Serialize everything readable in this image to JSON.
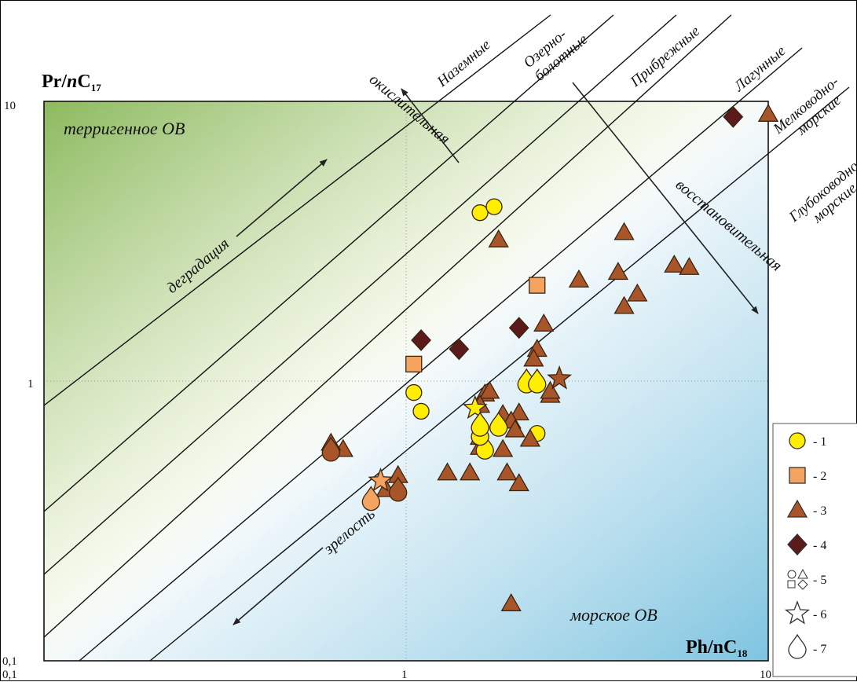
{
  "chart_data": {
    "type": "scatter",
    "xscale": "log",
    "yscale": "log",
    "xlim": [
      0.1,
      10
    ],
    "ylim": [
      0.1,
      10
    ],
    "xlabel": "Ph/nC18",
    "ylabel": "Pr/nC17",
    "xticks": [
      "0,1",
      "1",
      "10"
    ],
    "yticks": [
      "0,1",
      "1",
      "10"
    ],
    "zones": [
      "Наземные",
      "Озерно-\nболотные",
      "Прибрежные",
      "Лагунные",
      "Мелководно-\nморские",
      "Глубоководно-\nморские"
    ],
    "annotations": {
      "terrigenous": "терригенное ОВ",
      "marine": "морское ОВ",
      "degradation": "деградация",
      "maturity": "зрелость",
      "oxidizing": "окислительная",
      "reducing": "восстановительная"
    },
    "legend": [
      {
        "symbol": "circle",
        "label": "- 1"
      },
      {
        "symbol": "square",
        "label": "- 2"
      },
      {
        "symbol": "triangle",
        "label": "- 3"
      },
      {
        "symbol": "diamond",
        "label": "- 4"
      },
      {
        "symbol": "outline-group",
        "label": "- 5"
      },
      {
        "symbol": "star-outline",
        "label": "- 6"
      },
      {
        "symbol": "drop-outline",
        "label": "- 7"
      }
    ],
    "colors": {
      "circle": "#ffee00",
      "square": "#f4a460",
      "triangle": "#a9552a",
      "diamond": "#5c1a1a",
      "star_yellow": "#ffee00",
      "star_orange": "#f4a460",
      "star_brown": "#a9552a",
      "drop_yellow": "#ffee00",
      "drop_orange": "#f4a460",
      "drop_brown": "#a9552a",
      "terrigenous_zone": "#8fbf5e",
      "marine_zone": "#8fc8e2"
    },
    "series": [
      {
        "group": "1",
        "shape": "circle",
        "points": [
          [
            1.6,
            4.0
          ],
          [
            1.75,
            4.2
          ],
          [
            1.05,
            0.91
          ],
          [
            1.1,
            0.78
          ],
          [
            2.3,
            0.65
          ]
        ]
      },
      {
        "group": "2",
        "shape": "square",
        "points": [
          [
            2.3,
            2.2
          ],
          [
            1.05,
            1.15
          ]
        ]
      },
      {
        "group": "3",
        "shape": "triangle",
        "points": [
          [
            10.0,
            9.0
          ],
          [
            1.8,
            3.2
          ],
          [
            4.0,
            3.4
          ],
          [
            3.0,
            2.3
          ],
          [
            3.85,
            2.45
          ],
          [
            5.5,
            2.6
          ],
          [
            6.05,
            2.55
          ],
          [
            4.35,
            2.05
          ],
          [
            4.0,
            1.85
          ],
          [
            2.4,
            1.6
          ],
          [
            2.3,
            1.3
          ],
          [
            2.25,
            1.2
          ],
          [
            1.65,
            0.9
          ],
          [
            1.7,
            0.92
          ],
          [
            1.6,
            0.82
          ],
          [
            1.85,
            0.76
          ],
          [
            2.05,
            0.77
          ],
          [
            1.95,
            0.72
          ],
          [
            2.0,
            0.67
          ],
          [
            1.6,
            0.63
          ],
          [
            2.2,
            0.62
          ],
          [
            1.85,
            0.57
          ],
          [
            1.6,
            0.58
          ],
          [
            1.3,
            0.47
          ],
          [
            1.5,
            0.47
          ],
          [
            1.9,
            0.47
          ],
          [
            2.05,
            0.43
          ],
          [
            2.5,
            0.89
          ],
          [
            2.5,
            0.92
          ],
          [
            0.67,
            0.57
          ],
          [
            0.62,
            0.6
          ],
          [
            0.88,
            0.41
          ],
          [
            0.95,
            0.46
          ],
          [
            1.95,
            0.16
          ]
        ]
      },
      {
        "group": "4",
        "shape": "diamond",
        "points": [
          [
            8.0,
            8.8
          ],
          [
            2.05,
            1.55
          ],
          [
            1.1,
            1.4
          ],
          [
            1.4,
            1.3
          ]
        ]
      },
      {
        "group": "6",
        "shape": "star",
        "points": [
          [
            1.55,
            0.8
          ],
          [
            0.85,
            0.44
          ],
          [
            2.65,
            1.02
          ]
        ]
      },
      {
        "group": "7",
        "shape": "drop",
        "points": [
          [
            1.65,
            0.58
          ],
          [
            1.6,
            0.65
          ],
          [
            1.6,
            0.7
          ],
          [
            1.8,
            0.7
          ],
          [
            2.15,
            1.0
          ],
          [
            2.3,
            1.0
          ],
          [
            0.62,
            0.57
          ],
          [
            0.8,
            0.38
          ],
          [
            0.95,
            0.41
          ]
        ]
      }
    ]
  }
}
